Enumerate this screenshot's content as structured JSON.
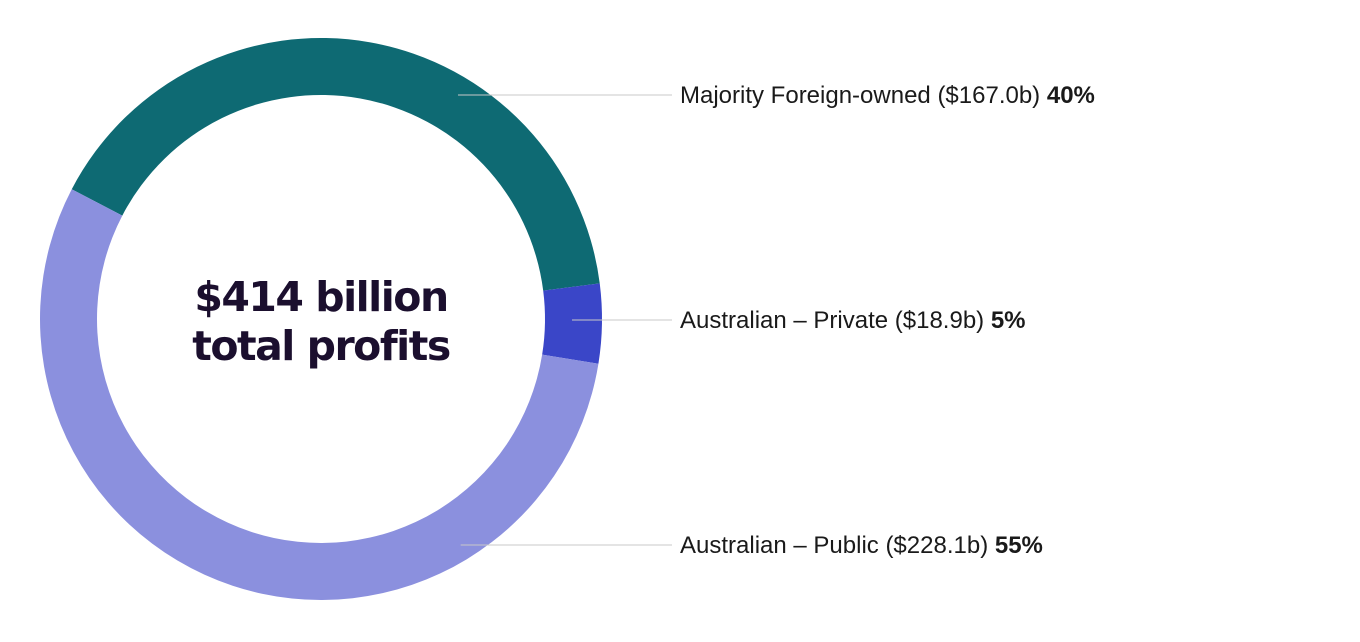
{
  "chart_data": {
    "type": "pie",
    "variant": "donut",
    "center_text": [
      "$414 billion",
      "total profits"
    ],
    "slices": [
      {
        "label": "Majority Foreign-owned ($167.0b)",
        "value": 167.0,
        "percent_text": "40%",
        "color": "#0e6a73"
      },
      {
        "label": "Australian – Private ($18.9b)",
        "value": 18.9,
        "percent_text": "5%",
        "color": "#3a46c8"
      },
      {
        "label": "Australian – Public ($228.1b)",
        "value": 228.1,
        "percent_text": "55%",
        "color": "#8b90de"
      }
    ],
    "legend": "right"
  }
}
